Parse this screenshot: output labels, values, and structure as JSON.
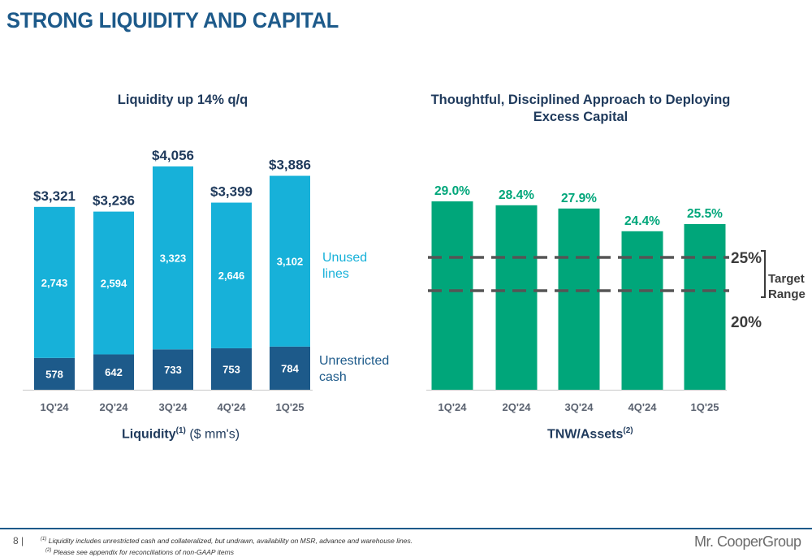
{
  "page": {
    "title": "STRONG LIQUIDITY AND CAPITAL",
    "page_number": "8 |",
    "footnote_1_marker": "(1)",
    "footnote_1": "Liquidity includes unrestricted cash and collateralized, but undrawn, availability on MSR, advance and warehouse lines.",
    "footnote_2_marker": "(2)",
    "footnote_2": "Please see appendix for reconciliations of non-GAAP items",
    "logo": "Mr. CooperGroup"
  },
  "colors": {
    "unused_lines": "#17b1d9",
    "unrestricted_cash": "#1d5a8a",
    "tnw_bar": "#00a67a",
    "tnw_label": "#00a67a",
    "target_line": "#555555"
  },
  "chart_data": [
    {
      "type": "bar",
      "stacked": true,
      "title": "Liquidity up 14% q/q",
      "xlabel_bold": "Liquidity",
      "xlabel_sup": "(1)",
      "xlabel_rest": " ($ mm's)",
      "categories": [
        "1Q'24",
        "2Q'24",
        "3Q'24",
        "4Q'24",
        "1Q'25"
      ],
      "series": [
        {
          "name": "Unrestricted cash",
          "values": [
            578,
            642,
            733,
            753,
            784
          ],
          "labels": [
            "578",
            "642",
            "733",
            "753",
            "784"
          ]
        },
        {
          "name": "Unused lines",
          "values": [
            2743,
            2594,
            3323,
            2646,
            3102
          ],
          "labels": [
            "2,743",
            "2,594",
            "3,323",
            "2,646",
            "3,102"
          ]
        }
      ],
      "totals": [
        3321,
        3236,
        4056,
        3399,
        3886
      ],
      "total_labels": [
        "$3,321",
        "$3,236",
        "$4,056",
        "$3,399",
        "$3,886"
      ],
      "legend_unused": "Unused lines",
      "legend_cash": "Unrestricted cash",
      "legend_placement": "right"
    },
    {
      "type": "bar",
      "title": "Thoughtful, Disciplined Approach to Deploying Excess Capital",
      "xlabel_bold": "TNW/Assets",
      "xlabel_sup": "(2)",
      "categories": [
        "1Q'24",
        "2Q'24",
        "3Q'24",
        "4Q'24",
        "1Q'25"
      ],
      "values": [
        29.0,
        28.4,
        27.9,
        24.4,
        25.5
      ],
      "value_labels": [
        "29.0%",
        "28.4%",
        "27.9%",
        "24.4%",
        "25.5%"
      ],
      "target_range": {
        "low": 20,
        "high": 25,
        "low_label": "20%",
        "high_label": "25%",
        "label": "Target Range"
      }
    }
  ]
}
